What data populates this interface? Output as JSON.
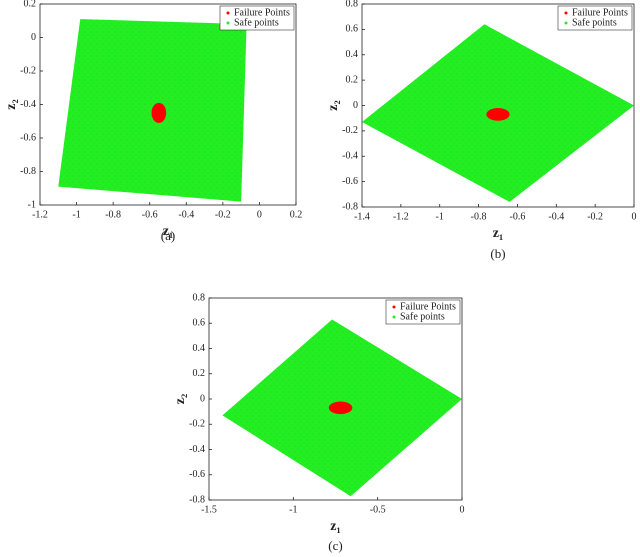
{
  "chart_data": [
    {
      "type": "scatter",
      "caption": "(a)",
      "xlabel": "z₁",
      "ylabel": "z₂",
      "legend": "upper right",
      "grid": false,
      "xlim": [
        -1.2,
        0.2
      ],
      "ylim": [
        -1,
        0.2
      ],
      "xticks": [
        -1.2,
        -1,
        -0.8,
        -0.6,
        -0.4,
        -0.2,
        0,
        0.2
      ],
      "yticks": [
        -1,
        -0.8,
        -0.6,
        -0.4,
        -0.2,
        0,
        0.2
      ],
      "series": [
        {
          "name": "Failure Points",
          "color": "#ff0000",
          "x": [
            -0.59,
            -0.55,
            -0.51,
            -0.55
          ],
          "y": [
            -0.45,
            -0.39,
            -0.45,
            -0.51
          ]
        },
        {
          "name": "Safe points",
          "color": "#22ee22",
          "x": [
            -0.98,
            -0.07,
            -0.1,
            -1.1
          ],
          "y": [
            0.11,
            0.08,
            -0.98,
            -0.89
          ]
        }
      ]
    },
    {
      "type": "scatter",
      "caption": "(b)",
      "xlabel": "z₁",
      "ylabel": "z₂",
      "legend": "upper right",
      "grid": false,
      "xlim": [
        -1.4,
        0
      ],
      "ylim": [
        -0.8,
        0.8
      ],
      "xticks": [
        -1.4,
        -1.2,
        -1,
        -0.8,
        -0.6,
        -0.4,
        -0.2,
        0
      ],
      "yticks": [
        -0.8,
        -0.6,
        -0.4,
        -0.2,
        0,
        0.2,
        0.4,
        0.6,
        0.8
      ],
      "series": [
        {
          "name": "Failure Points",
          "color": "#ff0000",
          "x": [
            -0.76,
            -0.7,
            -0.64,
            -0.7
          ],
          "y": [
            -0.07,
            -0.02,
            -0.07,
            -0.12
          ]
        },
        {
          "name": "Safe points",
          "color": "#22ee22",
          "x": [
            -1.4,
            -0.77,
            0,
            -0.64
          ],
          "y": [
            -0.13,
            0.64,
            0,
            -0.76
          ]
        }
      ]
    },
    {
      "type": "scatter",
      "caption": "(c)",
      "xlabel": "z₁",
      "ylabel": "z₂",
      "legend": "upper right",
      "grid": false,
      "xlim": [
        -1.5,
        0
      ],
      "ylim": [
        -0.8,
        0.8
      ],
      "xticks": [
        -1.5,
        -1,
        -0.5,
        0
      ],
      "yticks": [
        -0.8,
        -0.6,
        -0.4,
        -0.2,
        0,
        0.2,
        0.4,
        0.6,
        0.8
      ],
      "series": [
        {
          "name": "Failure Points",
          "color": "#ff0000",
          "x": [
            -0.79,
            -0.72,
            -0.65,
            -0.72
          ],
          "y": [
            -0.07,
            -0.02,
            -0.07,
            -0.12
          ]
        },
        {
          "name": "Safe points",
          "color": "#22ee22",
          "x": [
            -1.42,
            -0.77,
            0,
            -0.66
          ],
          "y": [
            -0.13,
            0.63,
            0,
            -0.77
          ]
        }
      ]
    }
  ]
}
